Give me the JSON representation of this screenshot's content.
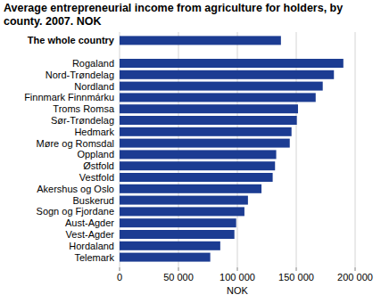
{
  "chart_data": {
    "type": "bar",
    "orientation": "horizontal",
    "title": "Average entrepreneurial income from agriculture for holders, by county. 2007. NOK",
    "x_label": "NOK",
    "categories": [
      "The whole country",
      "Rogaland",
      "Nord-Trøndelag",
      "Nordland",
      "Finnmark Finnmárku",
      "Troms Romsa",
      "Sør-Trøndelag",
      "Hedmark",
      "Møre og Romsdal",
      "Oppland",
      "Østfold",
      "Vestfold",
      "Akershus og Oslo",
      "Buskerud",
      "Sogn og Fjordane",
      "Aust-Agder",
      "Vest-Agder",
      "Hordaland",
      "Telemark"
    ],
    "values": [
      137000,
      190000,
      182000,
      172500,
      166500,
      151500,
      150500,
      146000,
      144500,
      133000,
      132000,
      130000,
      120500,
      109000,
      106000,
      99000,
      97500,
      85500,
      77000
    ],
    "color": "#1c3c92",
    "xlim": [
      0,
      200000
    ],
    "xticks": [
      0,
      {
        "value": 50000,
        "label": "50 000"
      },
      {
        "value": 100000,
        "label": "100 000"
      },
      {
        "value": 150000,
        "label": "150 000"
      },
      {
        "value": 200000,
        "label": "200 000"
      }
    ],
    "grid": true
  }
}
